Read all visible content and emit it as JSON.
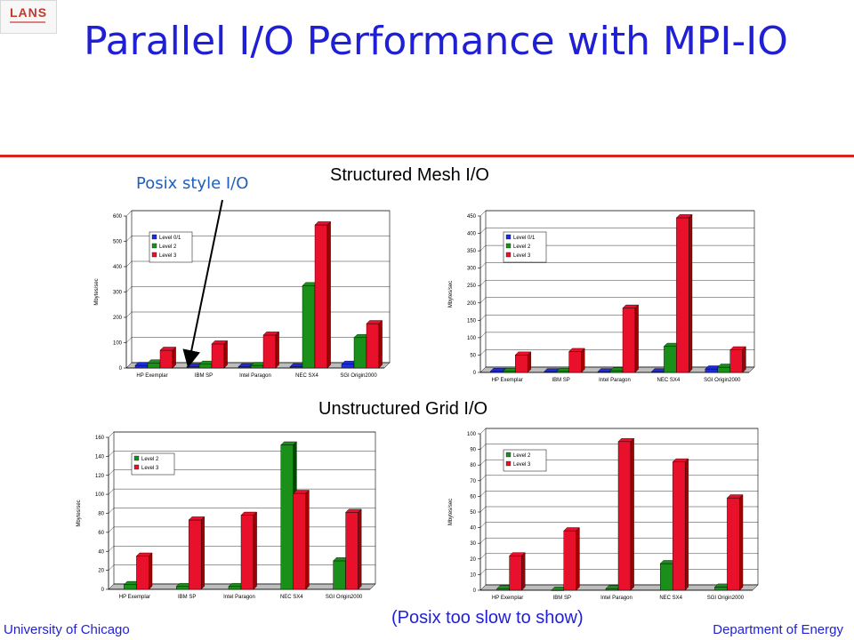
{
  "logo": {
    "text": "LANS"
  },
  "title": "Parallel I/O Performance with MPI-IO",
  "sections": {
    "structured": "Structured Mesh I/O",
    "unstructured": "Unstructured Grid I/O"
  },
  "annotation": "Posix style I/O",
  "note": "(Posix too slow to show)",
  "footer": {
    "left": "University of Chicago",
    "right": "Department of Energy"
  },
  "colors": {
    "level01": "#1f2bd6",
    "level2": "#1a8f1a",
    "level3": "#e8102a"
  },
  "chart_data": [
    {
      "type": "bar",
      "categories": [
        "HP Exemplar",
        "IBM SP",
        "Intel Paragon",
        "NEC SX4",
        "SGI Origin2000"
      ],
      "series": [
        {
          "name": "Level 0/1",
          "values": [
            10,
            5,
            5,
            5,
            15
          ]
        },
        {
          "name": "Level 2",
          "values": [
            20,
            15,
            10,
            325,
            120
          ]
        },
        {
          "name": "Level 3",
          "values": [
            70,
            95,
            130,
            565,
            175
          ]
        }
      ],
      "ylabel": "Mbytes/sec",
      "ylim": [
        0,
        600
      ],
      "yticks": [
        0,
        100,
        200,
        300,
        400,
        500,
        600
      ],
      "legend": "top-left"
    },
    {
      "type": "bar",
      "categories": [
        "HP Exemplar",
        "IBM SP",
        "Intel Paragon",
        "NEC SX4",
        "SGI Origin2000"
      ],
      "series": [
        {
          "name": "Level 0/1",
          "values": [
            3,
            2,
            2,
            2,
            10
          ]
        },
        {
          "name": "Level 2",
          "values": [
            3,
            3,
            5,
            75,
            15
          ]
        },
        {
          "name": "Level 3",
          "values": [
            50,
            60,
            185,
            445,
            65
          ]
        }
      ],
      "ylabel": "Mbytes/sec",
      "ylim": [
        0,
        450
      ],
      "yticks": [
        0,
        50,
        100,
        150,
        200,
        250,
        300,
        350,
        400,
        450
      ],
      "legend": "top-left"
    },
    {
      "type": "bar",
      "categories": [
        "HP Exemplar",
        "IBM SP",
        "Intel Paragon",
        "NEC SX4",
        "SGI Origin2000"
      ],
      "series": [
        {
          "name": "Level 2",
          "values": [
            5,
            3,
            3,
            152,
            30
          ]
        },
        {
          "name": "Level 3",
          "values": [
            35,
            73,
            78,
            101,
            81
          ]
        }
      ],
      "ylabel": "Mbytes/sec",
      "ylim": [
        0,
        160
      ],
      "yticks": [
        0,
        20,
        40,
        60,
        80,
        100,
        120,
        140,
        160
      ],
      "legend": "top-left"
    },
    {
      "type": "bar",
      "categories": [
        "HP Exemplar",
        "IBM SP",
        "Intel Paragon",
        "NEC SX4",
        "SGI Origin2000"
      ],
      "series": [
        {
          "name": "Level 2",
          "values": [
            1,
            0,
            1,
            17,
            2
          ]
        },
        {
          "name": "Level 3",
          "values": [
            22,
            38,
            95,
            82,
            59
          ]
        }
      ],
      "ylabel": "Mbytes/sec",
      "ylim": [
        0,
        100
      ],
      "yticks": [
        0,
        10,
        20,
        30,
        40,
        50,
        60,
        70,
        80,
        90,
        100
      ],
      "legend": "top-left"
    }
  ]
}
